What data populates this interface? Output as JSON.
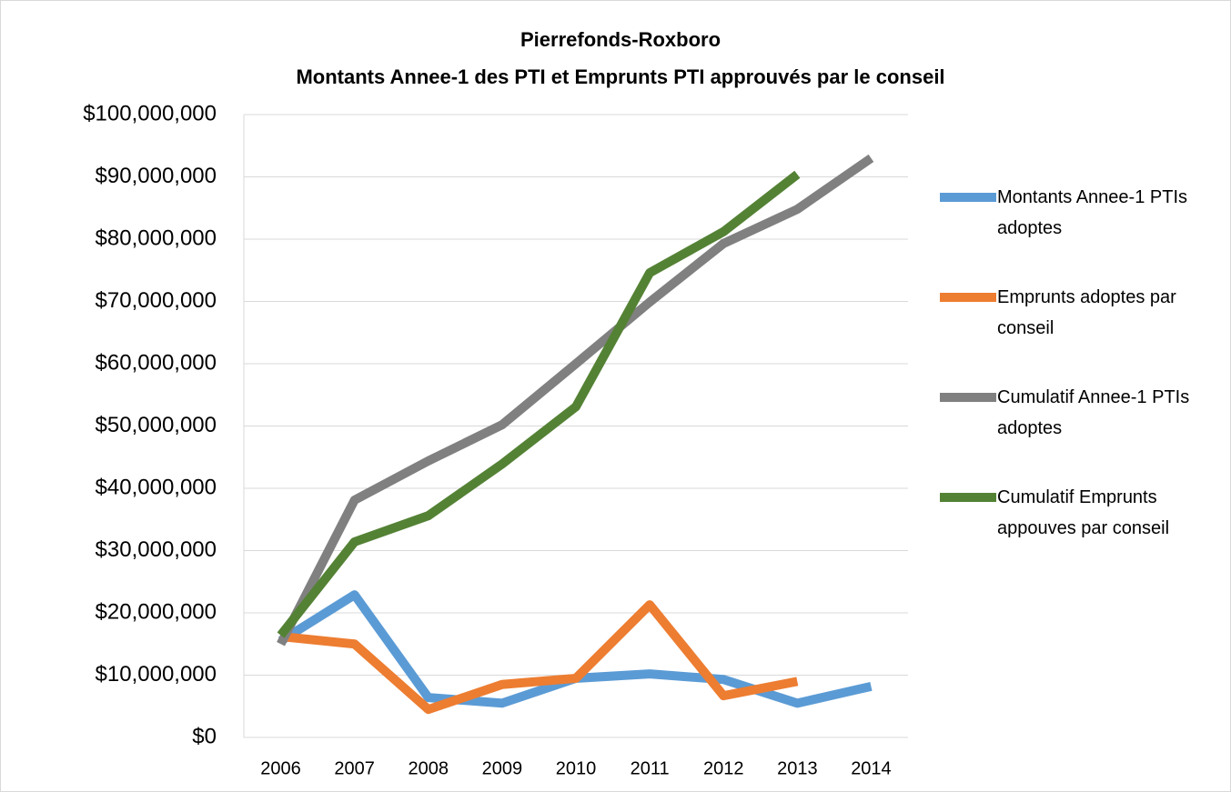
{
  "chart_data": {
    "type": "line",
    "title": "Pierrefonds-Roxboro",
    "subtitle": "Montants Annee-1 des PTI et Emprunts PTI approuvés par le conseil",
    "categories": [
      "2006",
      "2007",
      "2008",
      "2009",
      "2010",
      "2011",
      "2012",
      "2013",
      "2014"
    ],
    "series": [
      {
        "name": "Montants Annee-1 PTIs adoptes",
        "color": "#5b9bd5",
        "values": [
          15500000,
          22900000,
          6400000,
          5500000,
          9500000,
          10200000,
          9300000,
          5500000,
          8200000
        ]
      },
      {
        "name": "Emprunts adoptes par conseil",
        "color": "#ed7d31",
        "values": [
          16200000,
          15000000,
          4500000,
          8500000,
          9500000,
          21300000,
          6700000,
          9000000,
          null
        ]
      },
      {
        "name": "Cumulatif Annee-1 PTIs adoptes",
        "color": "#808080",
        "values": [
          15000000,
          38100000,
          44400000,
          50200000,
          60000000,
          69900000,
          79300000,
          84800000,
          93000000
        ]
      },
      {
        "name": "Cumulatif Emprunts appouves par conseil",
        "color": "#548235",
        "values": [
          16400000,
          31400000,
          35600000,
          43900000,
          53100000,
          74600000,
          81200000,
          90400000,
          null
        ]
      }
    ],
    "ylim": [
      0,
      100000000
    ],
    "yticks": [
      {
        "value": 0,
        "label": "$0"
      },
      {
        "value": 10000000,
        "label": "$10,000,000"
      },
      {
        "value": 20000000,
        "label": "$20,000,000"
      },
      {
        "value": 30000000,
        "label": "$30,000,000"
      },
      {
        "value": 40000000,
        "label": "$40,000,000"
      },
      {
        "value": 50000000,
        "label": "$50,000,000"
      },
      {
        "value": 60000000,
        "label": "$60,000,000"
      },
      {
        "value": 70000000,
        "label": "$70,000,000"
      },
      {
        "value": 80000000,
        "label": "$80,000,000"
      },
      {
        "value": 90000000,
        "label": "$90,000,000"
      },
      {
        "value": 100000000,
        "label": "$100,000,000"
      }
    ],
    "grid": true,
    "legend": "right"
  }
}
